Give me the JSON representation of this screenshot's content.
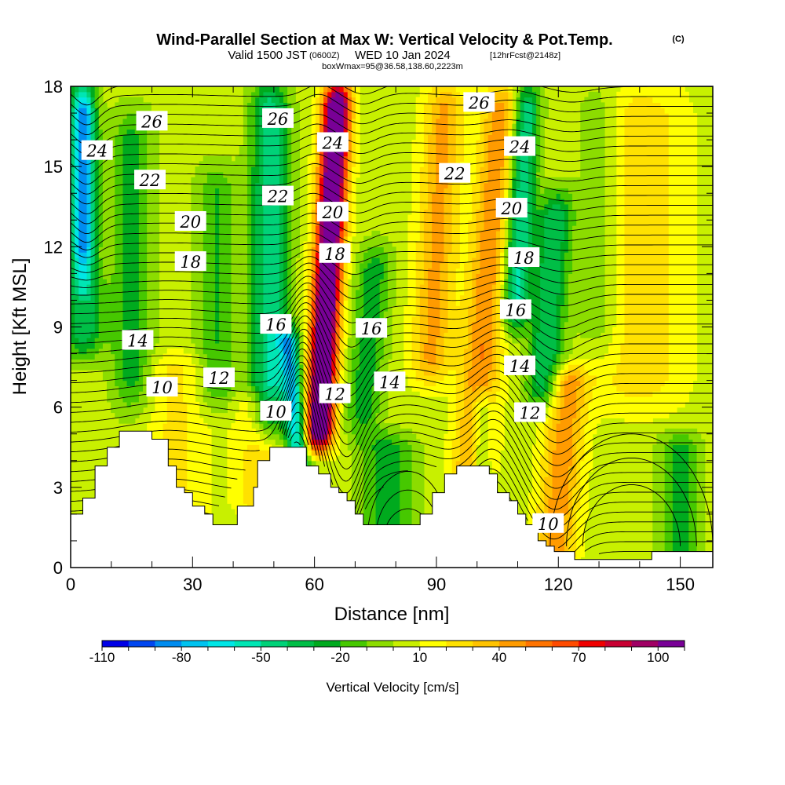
{
  "header": {
    "title": "Wind-Parallel Section at Max W: Vertical Velocity & Pot.Temp.",
    "copyright": "(C)",
    "valid_a": "Valid 1500 JST",
    "valid_utc": "(0600Z)",
    "valid_b": "WED 10 Jan 2024",
    "forecast": "[12hrFcst@2148z]",
    "boxinfo": "boxWmax=95@36.58,138.60,2223m"
  },
  "chart_data": {
    "type": "heatmap",
    "xlabel": "Distance [nm]",
    "ylabel": "Height [Kft MSL]",
    "xlim": [
      0,
      158
    ],
    "ylim": [
      0,
      18
    ],
    "x_ticks": [
      0,
      30,
      60,
      90,
      120,
      150
    ],
    "y_ticks": [
      0,
      3,
      6,
      9,
      12,
      15,
      18
    ],
    "colorbar": {
      "label": "Vertical Velocity [cm/s]",
      "tick_labels": [
        "-110",
        "-80",
        "-50",
        "-20",
        "10",
        "40",
        "70",
        "100"
      ],
      "levels": [
        -110,
        -100,
        -90,
        -80,
        -70,
        -60,
        -50,
        -40,
        -30,
        -20,
        -10,
        0,
        10,
        20,
        30,
        40,
        50,
        60,
        70,
        80,
        90,
        100,
        110
      ],
      "colors": [
        "#0000e6",
        "#0046f0",
        "#008cf0",
        "#00c3f0",
        "#00e6e6",
        "#00e6b4",
        "#00d278",
        "#00be46",
        "#00aa1e",
        "#46c800",
        "#8cdc00",
        "#c8f000",
        "#ffff00",
        "#ffe100",
        "#ffc300",
        "#ff9b00",
        "#ff7300",
        "#ff4b00",
        "#f00000",
        "#c80032",
        "#a00064",
        "#780096"
      ]
    },
    "theta_labels": [
      {
        "text": "26",
        "x": 20,
        "y": 16.7
      },
      {
        "text": "24",
        "x": 6.5,
        "y": 15.6
      },
      {
        "text": "22",
        "x": 19.5,
        "y": 14.5
      },
      {
        "text": "20",
        "x": 29.5,
        "y": 12.95
      },
      {
        "text": "18",
        "x": 29.5,
        "y": 11.45
      },
      {
        "text": "14",
        "x": 16.5,
        "y": 8.5
      },
      {
        "text": "10",
        "x": 22.5,
        "y": 6.75
      },
      {
        "text": "12",
        "x": 36.5,
        "y": 7.1
      },
      {
        "text": "10",
        "x": 50.5,
        "y": 5.85
      },
      {
        "text": "26",
        "x": 51,
        "y": 16.8
      },
      {
        "text": "22",
        "x": 51,
        "y": 13.9
      },
      {
        "text": "16",
        "x": 50.5,
        "y": 9.1
      },
      {
        "text": "24",
        "x": 64.5,
        "y": 15.9
      },
      {
        "text": "20",
        "x": 64.5,
        "y": 13.3
      },
      {
        "text": "18",
        "x": 65,
        "y": 11.75
      },
      {
        "text": "12",
        "x": 65,
        "y": 6.5
      },
      {
        "text": "16",
        "x": 74,
        "y": 8.95
      },
      {
        "text": "14",
        "x": 78.5,
        "y": 6.95
      },
      {
        "text": "22",
        "x": 94.5,
        "y": 14.75
      },
      {
        "text": "26",
        "x": 100.5,
        "y": 17.4
      },
      {
        "text": "24",
        "x": 110.5,
        "y": 15.75
      },
      {
        "text": "20",
        "x": 108.5,
        "y": 13.45
      },
      {
        "text": "18",
        "x": 111.5,
        "y": 11.6
      },
      {
        "text": "16",
        "x": 109.5,
        "y": 9.65
      },
      {
        "text": "14",
        "x": 110.5,
        "y": 7.55
      },
      {
        "text": "12",
        "x": 113,
        "y": 5.8
      },
      {
        "text": "10",
        "x": 117.5,
        "y": 1.65
      }
    ]
  }
}
